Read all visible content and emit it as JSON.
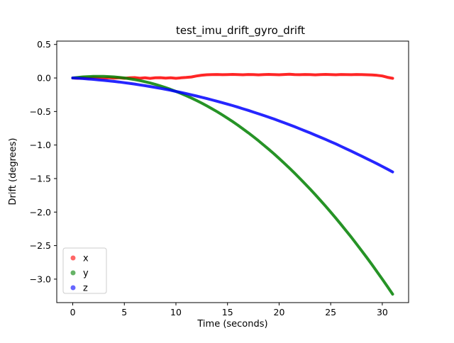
{
  "window": {
    "background": "#ffffff",
    "text_color": "#000000"
  },
  "chart_data": {
    "type": "scatter",
    "title": "test_imu_drift_gyro_drift",
    "xlabel": "Time (seconds)",
    "ylabel": "Drift (degrees)",
    "xlim": [
      -1.55,
      32.55
    ],
    "ylim": [
      -3.35,
      0.55
    ],
    "grid": false,
    "xticks": {
      "positions": [
        0,
        5,
        10,
        15,
        20,
        25,
        30
      ],
      "labels": [
        "0",
        "5",
        "10",
        "15",
        "20",
        "25",
        "30"
      ]
    },
    "yticks": {
      "positions": [
        0.5,
        0.0,
        -0.5,
        -1.0,
        -1.5,
        -2.0,
        -2.5,
        -3.0
      ],
      "labels": [
        "0.5",
        "0.0",
        "−0.5",
        "−1.0",
        "−1.5",
        "−2.0",
        "−2.5",
        "−3.0"
      ]
    },
    "legend": {
      "position": "lower left",
      "entries": [
        "x",
        "y",
        "z"
      ]
    },
    "marker_alpha": 0.6,
    "line_alpha": 0.85,
    "x": [
      0,
      0.5,
      1,
      1.5,
      2,
      2.5,
      3,
      3.5,
      4,
      4.5,
      5,
      5.5,
      6,
      6.5,
      7,
      7.5,
      8,
      8.5,
      9,
      9.5,
      10,
      10.5,
      11,
      11.5,
      12,
      12.5,
      13,
      13.5,
      14,
      14.5,
      15,
      15.5,
      16,
      16.5,
      17,
      17.5,
      18,
      18.5,
      19,
      19.5,
      20,
      20.5,
      21,
      21.5,
      22,
      22.5,
      23,
      23.5,
      24,
      24.5,
      25,
      25.5,
      26,
      26.5,
      27,
      27.5,
      28,
      28.5,
      29,
      29.5,
      30,
      30.5,
      31
    ],
    "series": [
      {
        "name": "x",
        "color": "#ff0000",
        "values": [
          0,
          -0.005,
          0.004,
          -0.003,
          0.006,
          0,
          -0.006,
          0.005,
          -0.002,
          0.004,
          -0.005,
          0.002,
          0.006,
          -0.004,
          0.003,
          -0.006,
          0.002,
          0.005,
          -0.003,
          0.004,
          -0.005,
          0.002,
          0.008,
          0.015,
          0.03,
          0.042,
          0.048,
          0.05,
          0.052,
          0.049,
          0.051,
          0.053,
          0.05,
          0.048,
          0.052,
          0.05,
          0.047,
          0.051,
          0.053,
          0.05,
          0.048,
          0.052,
          0.055,
          0.05,
          0.049,
          0.052,
          0.05,
          0.047,
          0.051,
          0.053,
          0.05,
          0.048,
          0.052,
          0.05,
          0.049,
          0.052,
          0.05,
          0.048,
          0.046,
          0.04,
          0.03,
          0.01,
          -0.005
        ]
      },
      {
        "name": "y",
        "color": "#008000",
        "values": [
          0,
          0.009,
          0.016,
          0.021,
          0.024,
          0.025,
          0.024,
          0.021,
          0.016,
          0.009,
          0,
          -0.011,
          -0.024,
          -0.039,
          -0.056,
          -0.075,
          -0.096,
          -0.119,
          -0.144,
          -0.171,
          -0.2,
          -0.231,
          -0.264,
          -0.299,
          -0.336,
          -0.375,
          -0.416,
          -0.459,
          -0.504,
          -0.551,
          -0.6,
          -0.651,
          -0.704,
          -0.759,
          -0.816,
          -0.875,
          -0.936,
          -0.999,
          -1.064,
          -1.131,
          -1.2,
          -1.271,
          -1.344,
          -1.419,
          -1.496,
          -1.575,
          -1.656,
          -1.739,
          -1.824,
          -1.911,
          -2.0,
          -2.091,
          -2.184,
          -2.279,
          -2.376,
          -2.475,
          -2.576,
          -2.679,
          -2.784,
          -2.891,
          -3.0,
          -3.111,
          -3.224
        ]
      },
      {
        "name": "z",
        "color": "#0000ff",
        "values": [
          0,
          -0.004,
          -0.009,
          -0.015,
          -0.021,
          -0.028,
          -0.035,
          -0.043,
          -0.051,
          -0.06,
          -0.07,
          -0.08,
          -0.091,
          -0.103,
          -0.115,
          -0.128,
          -0.141,
          -0.155,
          -0.169,
          -0.184,
          -0.2,
          -0.216,
          -0.233,
          -0.251,
          -0.269,
          -0.288,
          -0.307,
          -0.327,
          -0.347,
          -0.368,
          -0.39,
          -0.412,
          -0.435,
          -0.459,
          -0.483,
          -0.508,
          -0.533,
          -0.559,
          -0.585,
          -0.612,
          -0.64,
          -0.668,
          -0.697,
          -0.727,
          -0.757,
          -0.788,
          -0.819,
          -0.851,
          -0.883,
          -0.916,
          -0.95,
          -0.984,
          -1.019,
          -1.055,
          -1.091,
          -1.128,
          -1.165,
          -1.203,
          -1.241,
          -1.28,
          -1.32,
          -1.36,
          -1.401
        ]
      }
    ]
  }
}
